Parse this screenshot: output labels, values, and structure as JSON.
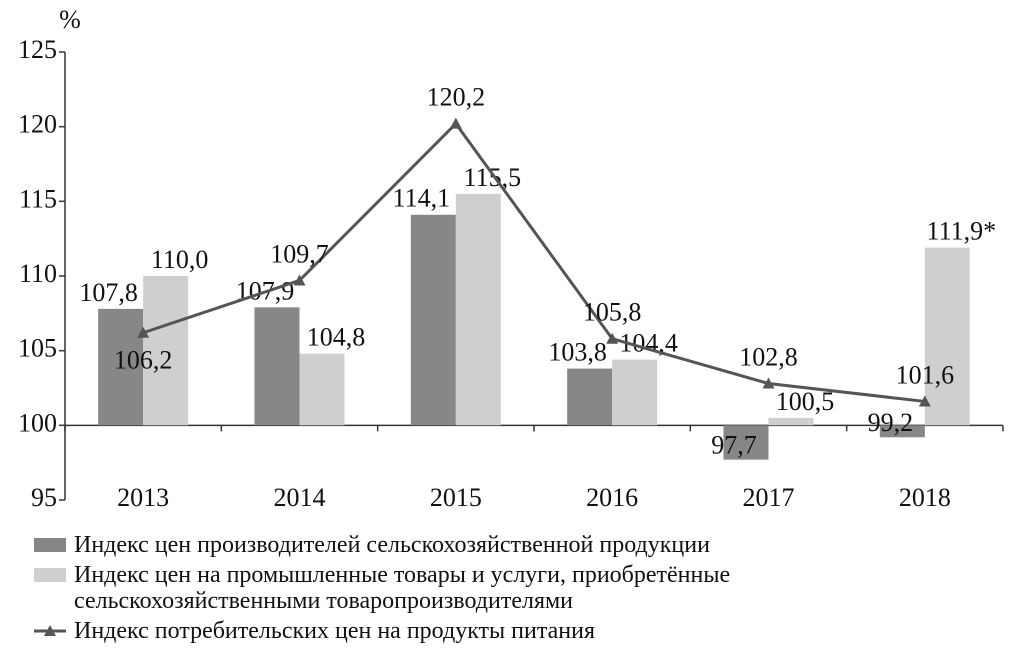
{
  "chart_data": {
    "type": "bar-line",
    "y_unit_label": "%",
    "categories": [
      "2013",
      "2014",
      "2015",
      "2016",
      "2017",
      "2018"
    ],
    "series": [
      {
        "name": "Индекс цен производителей сельскохозяйственной продукции",
        "type": "bar",
        "color": "#878787",
        "values": [
          107.8,
          107.9,
          114.1,
          103.8,
          97.7,
          99.2
        ],
        "value_labels": [
          "107,8",
          "107,9",
          "114,1",
          "103,8",
          "97,7",
          "99,2"
        ]
      },
      {
        "name": "Индекс цен на промышленные товары и услуги, приобретённые сельскохозяйственными товаропроизводителями",
        "type": "bar",
        "color": "#cfcfcf",
        "values": [
          110.0,
          104.8,
          115.5,
          104.4,
          100.5,
          111.9
        ],
        "value_labels": [
          "110,0",
          "104,8",
          "115,5",
          "104,4",
          "100,5",
          "111,9*"
        ]
      },
      {
        "name": "Индекс потребительских цен на продукты питания",
        "type": "line",
        "color": "#555555",
        "values": [
          106.2,
          109.7,
          120.2,
          105.8,
          102.8,
          101.6
        ],
        "value_labels": [
          "106,2",
          "109,7",
          "120,2",
          "105,8",
          "102,8",
          "101,6"
        ]
      }
    ],
    "ylim": [
      95,
      125
    ],
    "yticks": [
      95,
      100,
      105,
      110,
      115,
      120,
      125
    ],
    "baseline": 100,
    "grid": false
  }
}
